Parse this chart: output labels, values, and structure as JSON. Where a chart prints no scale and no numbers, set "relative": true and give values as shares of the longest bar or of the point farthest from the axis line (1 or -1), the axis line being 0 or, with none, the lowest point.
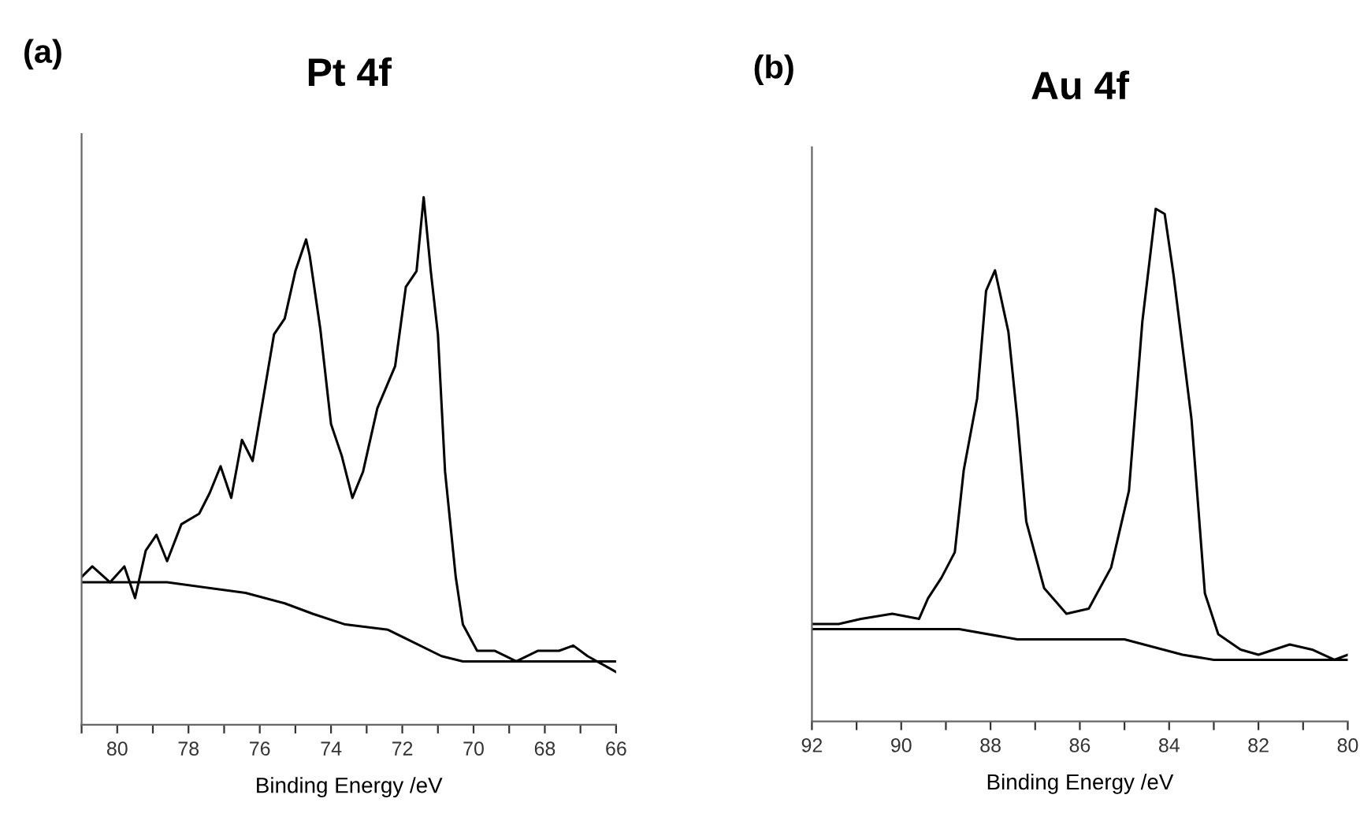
{
  "chart_data": [
    {
      "type": "line",
      "title": "Pt 4f",
      "xlabel": "Binding Energy /eV",
      "annotations": [
        "(a)"
      ],
      "relative": true,
      "tick_labels": "x",
      "grid": false,
      "marker": "none",
      "line_style": "solid",
      "xlim": [
        81,
        66
      ],
      "xticks": [
        {
          "value": 81,
          "label": null
        },
        80,
        {
          "value": 79,
          "label": null
        },
        78,
        {
          "value": 77,
          "label": null
        },
        76,
        {
          "value": 75,
          "label": null
        },
        74,
        {
          "value": 73,
          "label": null
        },
        72,
        {
          "value": 71,
          "label": null
        },
        70,
        {
          "value": 69,
          "label": null
        },
        68,
        {
          "value": 67,
          "label": null
        },
        66
      ],
      "series": [
        {
          "color": "#000000",
          "x": [
            81.0,
            80.7,
            80.2,
            79.8,
            79.5,
            79.2,
            78.9,
            78.6,
            78.2,
            77.7,
            77.4,
            77.1,
            76.8,
            76.5,
            76.2,
            75.9,
            75.6,
            75.3,
            75.0,
            74.7,
            74.6,
            74.3,
            74.0,
            73.7,
            73.4,
            73.1,
            72.7,
            72.2,
            71.9,
            71.6,
            71.4,
            71.2,
            71.0,
            70.8,
            70.5,
            70.3,
            69.9,
            69.4,
            68.8,
            68.2,
            67.6,
            67.2,
            66.8,
            66.0
          ],
          "values": [
            0.28,
            0.3,
            0.27,
            0.3,
            0.24,
            0.33,
            0.36,
            0.31,
            0.38,
            0.4,
            0.44,
            0.49,
            0.43,
            0.54,
            0.5,
            0.62,
            0.74,
            0.77,
            0.86,
            0.92,
            0.89,
            0.75,
            0.57,
            0.51,
            0.43,
            0.48,
            0.6,
            0.68,
            0.83,
            0.86,
            1.0,
            0.86,
            0.74,
            0.48,
            0.28,
            0.19,
            0.14,
            0.14,
            0.12,
            0.14,
            0.14,
            0.15,
            0.13,
            0.1
          ]
        },
        {
          "color": "#000000",
          "x": [
            81.0,
            78.6,
            76.4,
            75.3,
            74.5,
            73.6,
            72.4,
            70.9,
            70.3,
            66.0
          ],
          "values": [
            0.27,
            0.27,
            0.25,
            0.23,
            0.21,
            0.19,
            0.18,
            0.13,
            0.12,
            0.12
          ]
        }
      ]
    },
    {
      "type": "line",
      "title": "Au 4f",
      "xlabel": "Binding Energy /eV",
      "annotations": [
        "(b)"
      ],
      "relative": true,
      "tick_labels": "x",
      "grid": false,
      "marker": "none",
      "line_style": "solid",
      "xlim": [
        92,
        80
      ],
      "xticks": [
        92,
        {
          "value": 91,
          "label": null
        },
        90,
        {
          "value": 89,
          "label": null
        },
        88,
        {
          "value": 87,
          "label": null
        },
        86,
        {
          "value": 85,
          "label": null
        },
        84,
        {
          "value": 83,
          "label": null
        },
        82,
        {
          "value": 81,
          "label": null
        },
        80
      ],
      "series": [
        {
          "color": "#000000",
          "x": [
            92.0,
            91.4,
            90.9,
            90.2,
            89.6,
            89.4,
            89.1,
            88.8,
            88.6,
            88.3,
            88.1,
            87.9,
            87.6,
            87.4,
            87.2,
            86.8,
            86.3,
            85.8,
            85.3,
            84.9,
            84.6,
            84.3,
            84.1,
            83.9,
            83.5,
            83.2,
            82.9,
            82.4,
            82.0,
            81.3,
            80.8,
            80.3,
            80.0
          ],
          "values": [
            0.19,
            0.19,
            0.2,
            0.21,
            0.2,
            0.24,
            0.28,
            0.33,
            0.49,
            0.63,
            0.84,
            0.88,
            0.76,
            0.59,
            0.39,
            0.26,
            0.21,
            0.22,
            0.3,
            0.45,
            0.78,
            1.0,
            0.99,
            0.87,
            0.59,
            0.25,
            0.17,
            0.14,
            0.13,
            0.15,
            0.14,
            0.12,
            0.13
          ]
        },
        {
          "color": "#000000",
          "x": [
            92.0,
            88.7,
            87.4,
            85.0,
            83.7,
            83.0,
            80.0
          ],
          "values": [
            0.18,
            0.18,
            0.16,
            0.16,
            0.13,
            0.12,
            0.12
          ]
        }
      ]
    }
  ]
}
